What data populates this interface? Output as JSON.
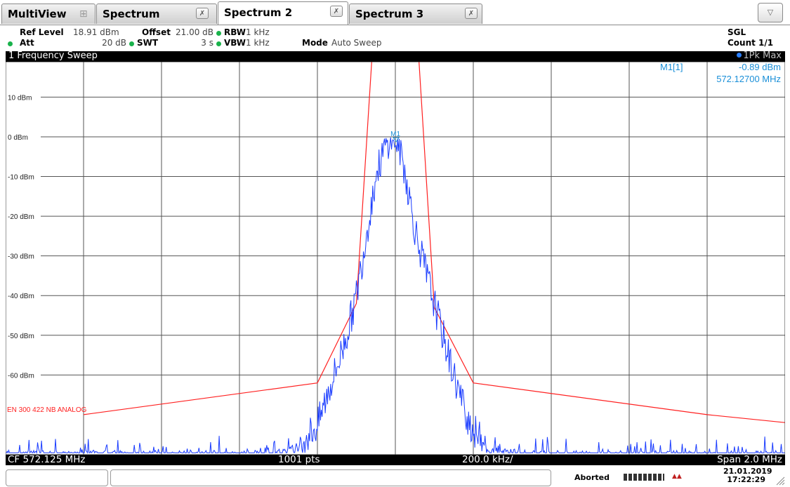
{
  "tabs": [
    {
      "label": "MultiView",
      "active": false,
      "icon": "grid-icon"
    },
    {
      "label": "Spectrum",
      "active": false,
      "close": "close-icon"
    },
    {
      "label": "Spectrum 2",
      "active": true,
      "close": "close-icon"
    },
    {
      "label": "Spectrum 3",
      "active": false,
      "close": "close-icon"
    }
  ],
  "menu_icon": "chevron-down-icon",
  "info": {
    "ref_level_label": "Ref Level",
    "ref_level_value": "18.91 dBm",
    "offset_label": "Offset",
    "offset_value": "21.00 dB",
    "rbw_label": "RBW",
    "rbw_value": "1 kHz",
    "att_label": "Att",
    "att_value": "20 dB",
    "swt_label": "SWT",
    "swt_value": "3 s",
    "vbw_label": "VBW",
    "vbw_value": "1 kHz",
    "mode_label": "Mode",
    "mode_value": "Auto Sweep",
    "sgl": "SGL",
    "count": "Count 1/1"
  },
  "sweep": {
    "title": "1 Frequency Sweep",
    "trace": "1Pk Max"
  },
  "marker": {
    "name": "M1[1]",
    "level": "-0.89 dBm",
    "freq": "572.12700 MHz",
    "label": "M1"
  },
  "limit_line_label": "EN 300 422 NB ANALOG",
  "bottom": {
    "cf": "CF 572.125 MHz",
    "pts": "1001 pts",
    "div": "200.0 kHz/",
    "span": "Span 2.0 MHz"
  },
  "status": {
    "state": "Aborted",
    "date": "21.01.2019",
    "time": "17:22:29"
  },
  "colors": {
    "trace": "#1a3cff",
    "limit": "#ff2020",
    "marker": "#1a8fd8",
    "grid": "#555555"
  },
  "chart_data": {
    "type": "line",
    "title": "",
    "xlabel": "",
    "ylabel": "",
    "xlim": [
      571.125,
      573.125
    ],
    "ylim": [
      -80.09,
      18.91
    ],
    "yticks": [
      {
        "value": 10,
        "label": "10 dBm"
      },
      {
        "value": 0,
        "label": "0 dBm"
      },
      {
        "value": -10,
        "label": "-10 dBm"
      },
      {
        "value": -20,
        "label": "-20 dBm"
      },
      {
        "value": -30,
        "label": "-30 dBm"
      },
      {
        "value": -40,
        "label": "-40 dBm"
      },
      {
        "value": -50,
        "label": "-50 dBm"
      },
      {
        "value": -60,
        "label": "-60 dBm"
      }
    ],
    "x_divisions": 10,
    "grid": true,
    "series": [
      {
        "name": "EN 300 422 NB ANALOG",
        "role": "limit",
        "x": [
          571.325,
          571.925,
          572.025,
          572.065,
          572.185,
          572.225,
          572.325,
          572.925,
          573.125
        ],
        "y": [
          -70,
          -62,
          -42,
          20,
          20,
          -43,
          -62,
          -70,
          -72
        ]
      },
      {
        "name": "1Pk Max",
        "role": "trace",
        "x": [
          571.125,
          571.325,
          571.525,
          571.725,
          571.85,
          571.9,
          571.925,
          571.95,
          571.975,
          572.0,
          572.025,
          572.05,
          572.075,
          572.1,
          572.115,
          572.125,
          572.135,
          572.15,
          572.175,
          572.2,
          572.225,
          572.25,
          572.275,
          572.3,
          572.325,
          572.35,
          572.4,
          572.525,
          572.725,
          572.925,
          573.125
        ],
        "y": [
          -79,
          -79,
          -79,
          -79,
          -78.5,
          -75,
          -73,
          -65,
          -58,
          -50,
          -40,
          -25,
          -10,
          -2,
          0,
          -1,
          -2.5,
          -9,
          -23,
          -33,
          -42,
          -51,
          -60,
          -68,
          -74,
          -77,
          -78.5,
          -79,
          -79,
          -79,
          -79
        ]
      }
    ],
    "markers": [
      {
        "name": "M1",
        "x": 572.127,
        "y": -0.89
      }
    ]
  }
}
